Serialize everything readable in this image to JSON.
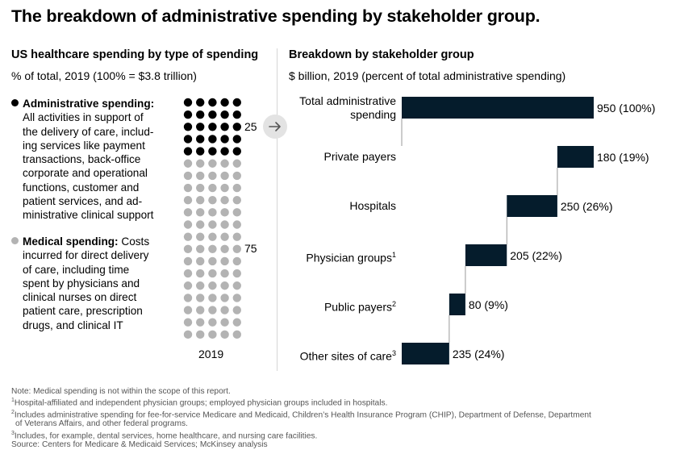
{
  "title": "The breakdown of administrative spending by stakeholder group.",
  "left": {
    "title": "US healthcare spending by type of spending",
    "subtitle": "% of total, 2019 (100% = $3.8 trillion)",
    "admin": {
      "label": "Administrative spending:",
      "lines": [
        "All activities in support of",
        "the delivery of care, includ-",
        "ing services like payment",
        "transactions, back-office",
        "corporate and operational",
        "functions, customer and",
        "patient services, and ad-",
        "ministrative clinical support"
      ],
      "value": "25",
      "color": "#000000"
    },
    "medical": {
      "label": "Medical spending:",
      "first_line_rest": "Costs",
      "lines": [
        "incurred for direct delivery",
        "of care, including time",
        "spent by physicians and",
        "clinical nurses on direct",
        "patient care, prescription",
        "drugs, and clinical IT"
      ],
      "value": "75",
      "color": "#b3b3b3"
    },
    "year": "2019"
  },
  "right": {
    "title": "Breakdown by stakeholder group",
    "subtitle": "$ billion, 2019 (percent of total administrative spending)"
  },
  "colors": {
    "bar": "#051c2c",
    "connector": "#9a9a9a",
    "arrow_bg": "#e3e3e3",
    "divider": "#d6d6d6"
  },
  "chart_data": [
    {
      "type": "waffle",
      "categories": [
        "Administrative spending",
        "Medical spending"
      ],
      "values": [
        25,
        75
      ],
      "total_label": "100% = $3.8 trillion",
      "x_category": "2019",
      "grid": {
        "columns": 5,
        "rows": 20
      }
    },
    {
      "type": "bar",
      "subtype": "waterfall",
      "categories": [
        "Total administrative spending",
        "Private payers",
        "Hospitals",
        "Physician groups",
        "Public payers",
        "Other sites of care"
      ],
      "category_label_lines": [
        [
          "Total administrative",
          "spending"
        ],
        [
          "Private payers"
        ],
        [
          "Hospitals"
        ],
        [
          "Physician groups"
        ],
        [
          "Public payers"
        ],
        [
          "Other sites of care"
        ]
      ],
      "footnote_refs": [
        "",
        "",
        "",
        "1",
        "2",
        "3"
      ],
      "values": [
        950,
        180,
        250,
        205,
        80,
        235
      ],
      "percents": [
        100,
        19,
        26,
        22,
        9,
        24
      ],
      "value_labels": [
        "950 (100%)",
        "180 (19%)",
        "250 (26%)",
        "205 (22%)",
        "80 (9%)",
        "235 (24%)"
      ],
      "total_index": 0,
      "units": "$ billion"
    }
  ],
  "footer": {
    "note": "Note: Medical spending is not within the scope of this report.",
    "fn1": "Hospital-affiliated and independent physician groups; employed physician groups included in hospitals.",
    "fn2_a": "Includes administrative spending for fee-for-service Medicare and Medicaid, Children’s Health Insurance Program (CHIP), Department of Defense, Department",
    "fn2_b": "of Veterans Affairs, and other federal programs.",
    "fn3": "Includes, for example, dental services, home healthcare, and nursing care facilities.",
    "source": "Source: Centers for Medicare & Medicaid Services; McKinsey analysis",
    "marks": [
      "1",
      "2",
      "3"
    ]
  }
}
